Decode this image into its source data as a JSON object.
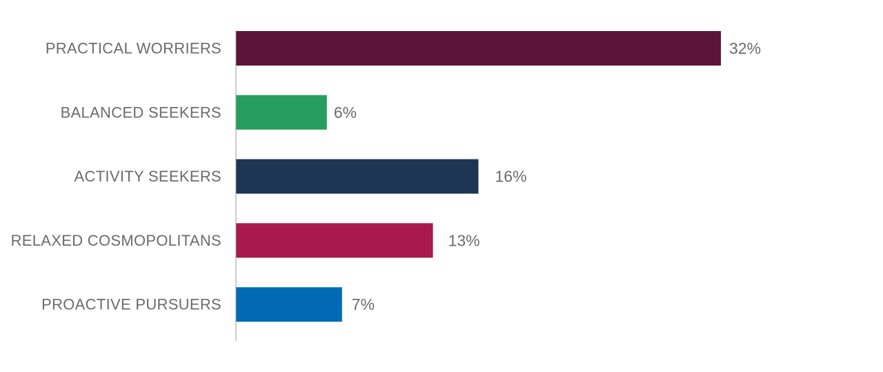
{
  "chart_data": {
    "type": "bar",
    "orientation": "horizontal",
    "categories": [
      "PRACTICAL WORRIERS",
      "BALANCED SEEKERS",
      "ACTIVITY SEEKERS",
      "RELAXED COSMOPOLITANS",
      "PROACTIVE PURSUERS"
    ],
    "values": [
      32,
      6,
      16,
      13,
      7
    ],
    "value_labels": [
      "32%",
      "6%",
      "16%",
      "13%",
      "7%"
    ],
    "colors": [
      "#5a1539",
      "#279e5e",
      "#1e3553",
      "#a8194c",
      "#006ab4"
    ],
    "unit": "%",
    "xlim": [
      0,
      32
    ],
    "title": "",
    "xlabel": "",
    "ylabel": "",
    "grid": false,
    "legend": "none"
  }
}
